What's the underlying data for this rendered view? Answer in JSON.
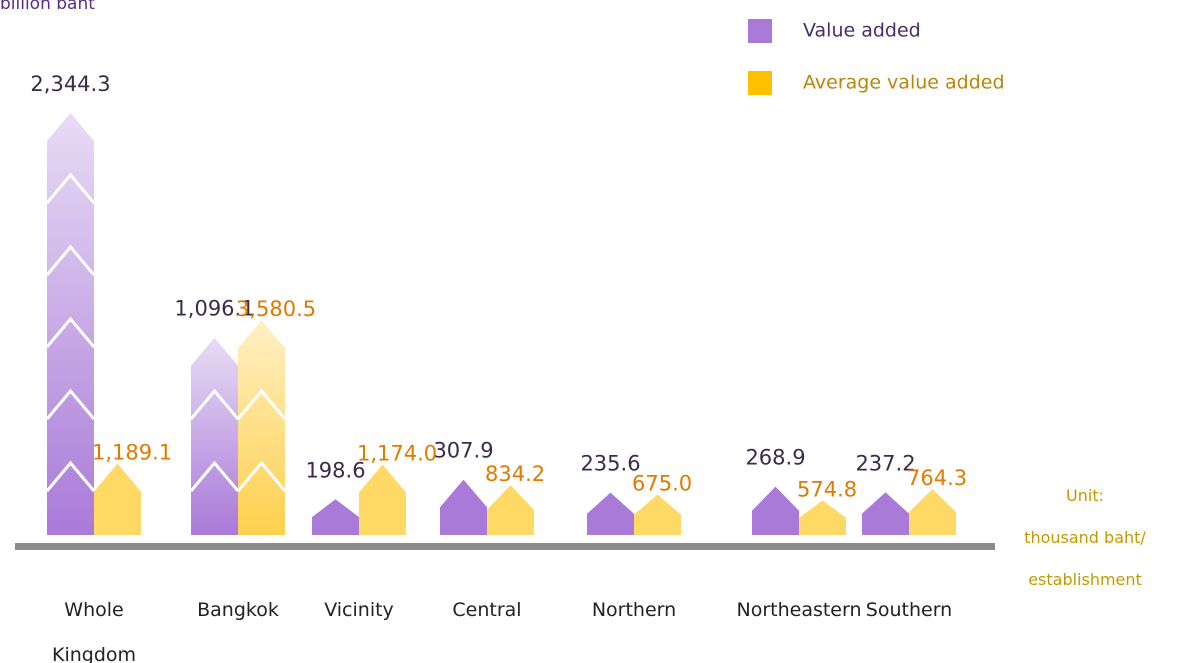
{
  "chart_data": {
    "type": "bar",
    "title": "billion baht",
    "categories": [
      "Whole Kingdom",
      "Bangkok",
      "Vicinity",
      "Central",
      "Northern",
      "Northeastern",
      "Southern"
    ],
    "series": [
      {
        "name": "Value added",
        "color": "#a97ad8",
        "values": [
          2344.3,
          1096.1,
          198.6,
          307.9,
          235.6,
          268.9,
          237.2
        ],
        "value_labels": [
          "2,344.3",
          "1,096.1",
          "198.6",
          "307.9",
          "235.6",
          "268.9",
          "237.2"
        ]
      },
      {
        "name": "Average value added",
        "color": "#ffd966",
        "values": [
          1189.1,
          3580.5,
          1174.0,
          834.2,
          675.0,
          574.8,
          764.3
        ],
        "value_labels": [
          "1,189.1",
          "3,580.5",
          "1,174.0",
          "834.2",
          "675.0",
          "574.8",
          "764.3"
        ]
      }
    ],
    "unit_note": [
      "Unit:",
      "thousand baht/",
      "establishment"
    ]
  }
}
